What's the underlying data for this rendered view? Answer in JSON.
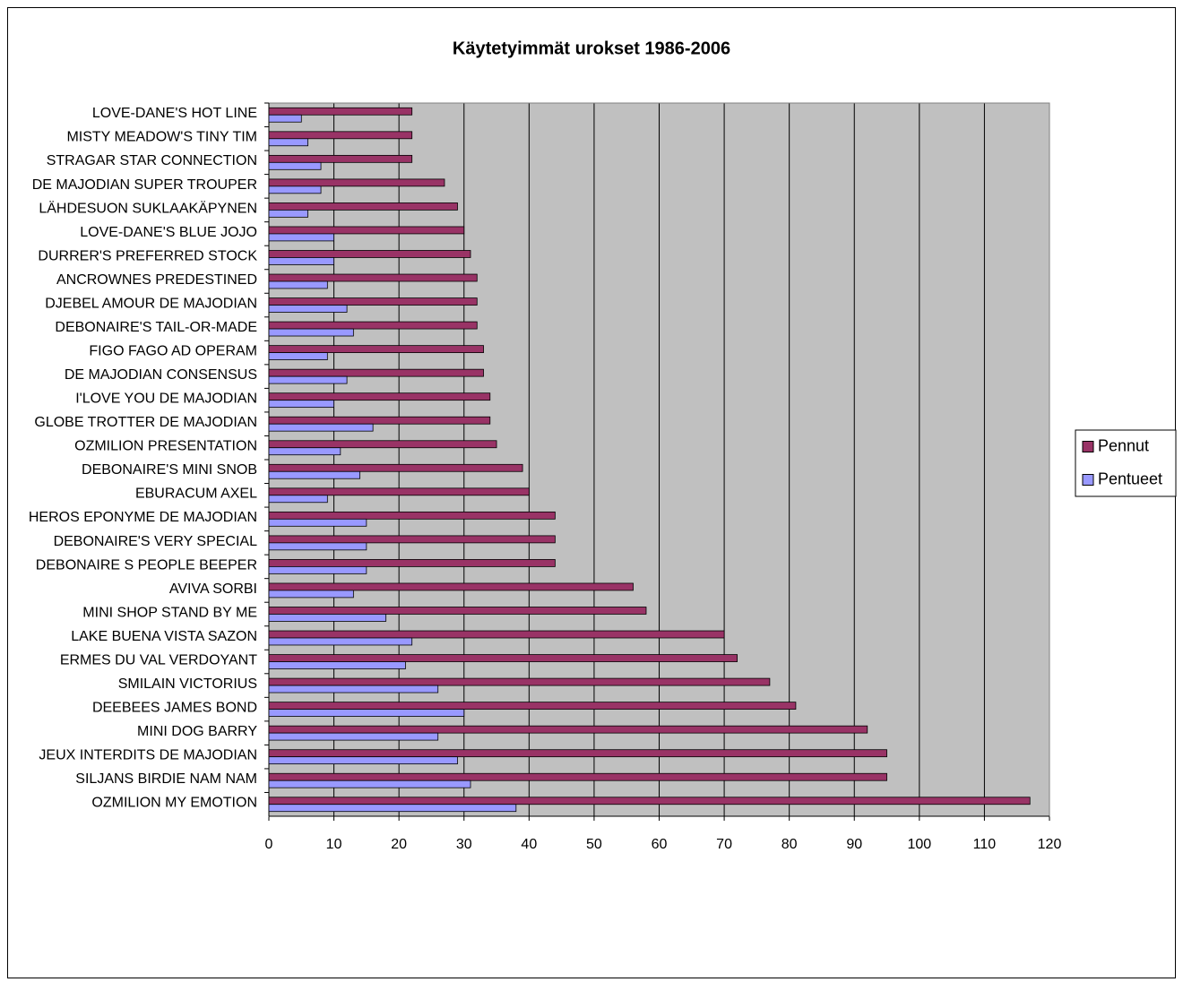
{
  "chart_data": {
    "type": "bar",
    "orientation": "horizontal",
    "title": "Käytetyimmät urokset 1986-2006",
    "categories": [
      "LOVE-DANE'S HOT LINE",
      "MISTY MEADOW'S TINY TIM",
      "STRAGAR STAR CONNECTION",
      "DE MAJODIAN SUPER TROUPER",
      "LÄHDESUON SUKLAAKÄPYNEN",
      "LOVE-DANE'S BLUE JOJO",
      "DURRER'S PREFERRED STOCK",
      "ANCROWNES PREDESTINED",
      "DJEBEL AMOUR DE MAJODIAN",
      "DEBONAIRE'S TAIL-OR-MADE",
      "FIGO FAGO AD OPERAM",
      "DE MAJODIAN CONSENSUS",
      "I'LOVE YOU DE MAJODIAN",
      "GLOBE TROTTER DE MAJODIAN",
      "OZMILION PRESENTATION",
      "DEBONAIRE'S MINI SNOB",
      "EBURACUM AXEL",
      "HEROS EPONYME DE MAJODIAN",
      "DEBONAIRE'S VERY SPECIAL",
      "DEBONAIRE S PEOPLE BEEPER",
      "AVIVA SORBI",
      "MINI SHOP STAND BY ME",
      "LAKE BUENA VISTA SAZON",
      "ERMES DU VAL VERDOYANT",
      "SMILAIN VICTORIUS",
      "DEEBEES JAMES BOND",
      "MINI DOG BARRY",
      "JEUX INTERDITS DE MAJODIAN",
      "SILJANS BIRDIE NAM NAM",
      "OZMILION MY EMOTION"
    ],
    "series": [
      {
        "name": "Pennut",
        "color": "#993366",
        "values": [
          22,
          22,
          22,
          27,
          29,
          30,
          31,
          32,
          32,
          32,
          33,
          33,
          34,
          34,
          35,
          39,
          40,
          44,
          44,
          44,
          56,
          58,
          70,
          72,
          77,
          81,
          92,
          95,
          95,
          117
        ]
      },
      {
        "name": "Pentueet",
        "color": "#9999ff",
        "values": [
          5,
          6,
          8,
          8,
          6,
          10,
          10,
          9,
          12,
          13,
          9,
          12,
          10,
          16,
          11,
          14,
          9,
          15,
          15,
          15,
          13,
          18,
          22,
          21,
          26,
          30,
          26,
          29,
          31,
          38
        ]
      }
    ],
    "xlim": [
      0,
      120
    ],
    "xticks": [
      0,
      10,
      20,
      30,
      40,
      50,
      60,
      70,
      80,
      90,
      100,
      110,
      120
    ],
    "grid": true,
    "plot_background": "#c0c0c0",
    "legend": "right"
  }
}
